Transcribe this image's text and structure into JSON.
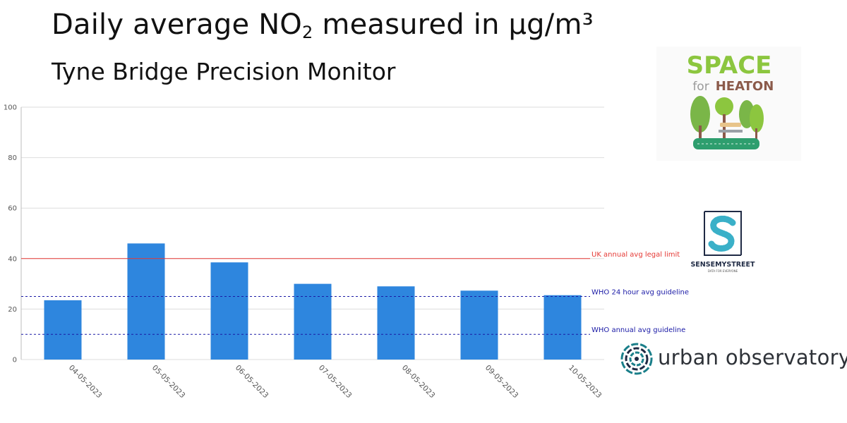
{
  "header": {
    "title_main": "Daily average NO",
    "title_sub": "2",
    "title_rest": " measured in µg/m³",
    "subtitle": "Tyne Bridge Precision Monitor"
  },
  "chart_data": {
    "type": "bar",
    "categories": [
      "04-05-2023",
      "05-05-2023",
      "06-05-2023",
      "07-05-2023",
      "08-05-2023",
      "09-05-2023",
      "10-05-2023"
    ],
    "values": [
      23.5,
      46,
      38.5,
      30,
      29,
      27.3,
      25.5
    ],
    "ylim": [
      0,
      100
    ],
    "yticks": [
      0,
      20,
      40,
      60,
      80,
      100
    ],
    "grid": true,
    "bar_color": "#2e86de",
    "reference_lines": [
      {
        "label": "UK annual avg legal limit",
        "value": 40,
        "color": "#e53935",
        "style": "solid"
      },
      {
        "label": "WHO 24 hour avg guideline",
        "value": 25,
        "color": "#1a1aa6",
        "style": "dashed"
      },
      {
        "label": "WHO annual avg guideline",
        "value": 10,
        "color": "#1a1aa6",
        "style": "dashed"
      }
    ]
  },
  "logos": {
    "space_for_heaton_line1": "SPACE",
    "space_for_heaton_for": "for",
    "space_for_heaton_line2": "HEATON",
    "sense_my_street": "SENSEMYSTREET",
    "sense_my_street_tagline": "DATA FOR EVERYONE",
    "urban_observatory": "urban observatory"
  },
  "colors": {
    "heaton_green": "#8cc63f",
    "heaton_brown": "#8b5a4a",
    "ss_teal": "#3ab0c8",
    "ss_navy": "#1f2a44",
    "uo_teal": "#1a7f8a"
  }
}
